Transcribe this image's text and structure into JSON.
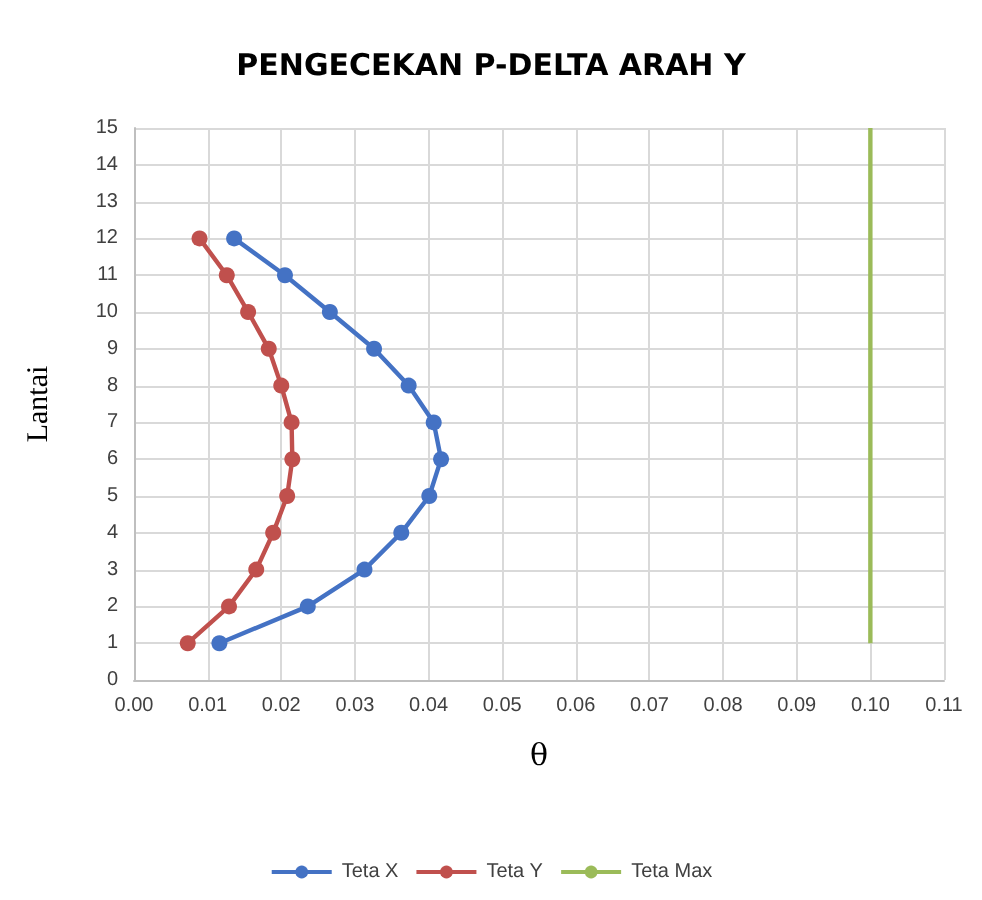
{
  "chart_data": {
    "type": "line",
    "title": "PENGECEKAN P-DELTA ARAH Y",
    "xlabel": "θ",
    "ylabel": "Lantai",
    "series": [
      {
        "name": "Teta X",
        "color": "#4472c4",
        "x": [
          0.0116,
          0.0236,
          0.0313,
          0.0363,
          0.0401,
          0.0417,
          0.0407,
          0.0373,
          0.0326,
          0.0266,
          0.0205,
          0.0136
        ],
        "values": [
          1,
          2,
          3,
          4,
          5,
          6,
          7,
          8,
          9,
          10,
          11,
          12
        ],
        "marker": "circle"
      },
      {
        "name": "Teta Y",
        "color": "#c0504d",
        "x": [
          0.0073,
          0.0129,
          0.0166,
          0.0189,
          0.0208,
          0.0215,
          0.0214,
          0.02,
          0.0183,
          0.0155,
          0.0126,
          0.0089
        ],
        "values": [
          1,
          2,
          3,
          4,
          5,
          6,
          7,
          8,
          9,
          10,
          11,
          12
        ],
        "marker": "circle"
      },
      {
        "name": "Teta Max",
        "color": "#9bbb59",
        "x": [
          0.1,
          0.1
        ],
        "values": [
          1,
          15
        ],
        "marker": "none"
      }
    ],
    "xlim": [
      0,
      0.11
    ],
    "xticks": [
      {
        "value": 0,
        "label": "0.00"
      },
      {
        "value": 0.01,
        "label": "0.01"
      },
      {
        "value": 0.02,
        "label": "0.02"
      },
      {
        "value": 0.03,
        "label": "0.03"
      },
      {
        "value": 0.04,
        "label": "0.04"
      },
      {
        "value": 0.05,
        "label": "0.05"
      },
      {
        "value": 0.06,
        "label": "0.06"
      },
      {
        "value": 0.07,
        "label": "0.07"
      },
      {
        "value": 0.08,
        "label": "0.08"
      },
      {
        "value": 0.09,
        "label": "0.09"
      },
      {
        "value": 0.1,
        "label": "0.10"
      },
      {
        "value": 0.11,
        "label": "0.11"
      }
    ],
    "ylim": [
      0,
      15
    ],
    "yticks": [
      0,
      1,
      2,
      3,
      4,
      5,
      6,
      7,
      8,
      9,
      10,
      11,
      12,
      13,
      14,
      15
    ],
    "grid": true,
    "legend": "bottom"
  }
}
